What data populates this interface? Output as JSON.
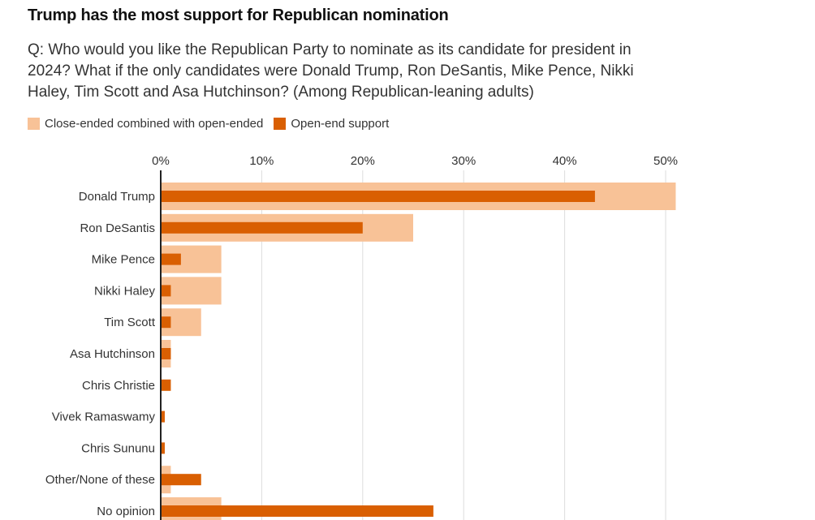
{
  "title": "Trump has the most support for Republican nomination",
  "subtitle": "Q: Who would you like the Republican Party to nominate as its candidate for president in 2024? What if the only candidates were Donald Trump, Ron DeSantis, Mike Pence, Nikki Haley, Tim Scott and Asa Hutchinson? (Among Republican-leaning adults)",
  "legend": [
    {
      "label": "Close-ended combined with open-ended",
      "color": "#f8c297"
    },
    {
      "label": "Open-end support",
      "color": "#d95f02"
    }
  ],
  "chart_data": {
    "type": "bar",
    "orientation": "horizontal",
    "title": "Trump has the most support for Republican nomination",
    "xlabel": "",
    "ylabel": "",
    "xlim": [
      0,
      52
    ],
    "x_ticks": [
      "0%",
      "10%",
      "20%",
      "30%",
      "40%",
      "50%"
    ],
    "x_tick_values": [
      0,
      10,
      20,
      30,
      40,
      50
    ],
    "grid": true,
    "legend_position": "top-left",
    "categories": [
      "Donald Trump",
      "Ron DeSantis",
      "Mike Pence",
      "Nikki Haley",
      "Tim Scott",
      "Asa Hutchinson",
      "Chris Christie",
      "Vivek Ramaswamy",
      "Chris Sununu",
      "Other/None of these",
      "No opinion"
    ],
    "series": [
      {
        "name": "Close-ended combined with open-ended",
        "color": "#f8c297",
        "values": [
          51,
          25,
          6,
          6,
          4,
          1,
          0,
          0,
          0,
          1,
          6
        ]
      },
      {
        "name": "Open-end support",
        "color": "#d95f02",
        "values": [
          43,
          20,
          2,
          1,
          1,
          1,
          1,
          0.4,
          0.4,
          4,
          27
        ]
      }
    ]
  }
}
